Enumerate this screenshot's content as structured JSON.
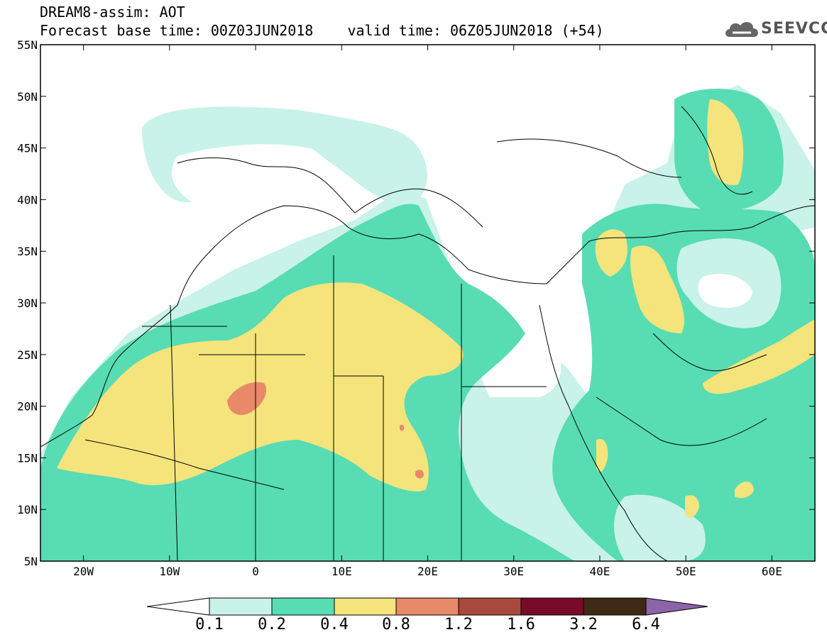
{
  "header": {
    "line1": "DREAM8-assim: AOT",
    "line2": "Forecast base time: 00Z03JUN2018    valid time: 06Z05JUN2018 (+54)"
  },
  "logo": {
    "text": "SEEVCCC",
    "icon": "cloud-icon"
  },
  "map": {
    "lat_ticks": [
      "55N",
      "50N",
      "45N",
      "40N",
      "35N",
      "30N",
      "25N",
      "20N",
      "15N",
      "10N",
      "5N"
    ],
    "lon_ticks": [
      "20W",
      "10W",
      "0",
      "10E",
      "20E",
      "30E",
      "40E",
      "50E",
      "60E"
    ],
    "lon_range": [
      -25,
      65
    ],
    "lat_range": [
      5,
      55
    ]
  },
  "colorbar": {
    "labels": [
      "0.1",
      "0.2",
      "0.4",
      "0.8",
      "1.2",
      "1.6",
      "3.2",
      "6.4"
    ],
    "colors": [
      "#ffffff",
      "#c8f2ea",
      "#58dcb4",
      "#f5e47c",
      "#e8896a",
      "#a8493e",
      "#7a0a2a",
      "#3e2a14",
      "#8c64a8"
    ]
  },
  "colors": {
    "c1": "#c8f2ea",
    "c2": "#58dcb4",
    "c3": "#f5e47c",
    "c4": "#e8896a"
  }
}
